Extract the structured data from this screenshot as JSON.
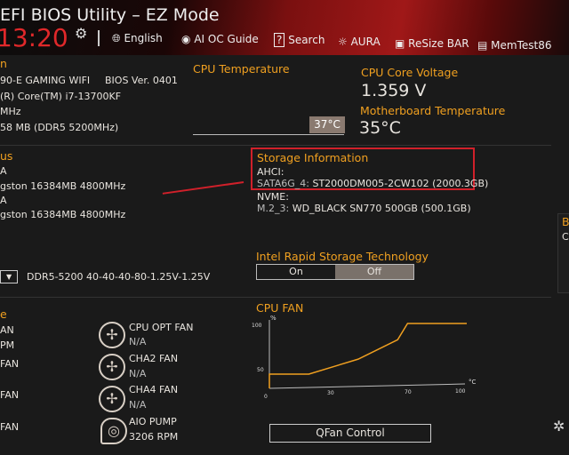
{
  "header": {
    "title": "EFI BIOS Utility – EZ Mode",
    "time": "13:20",
    "nav": [
      {
        "label": "English",
        "icon": "globe-icon"
      },
      {
        "label": "AI OC Guide",
        "icon": "ai-icon"
      },
      {
        "label": "Search",
        "icon": "question-icon"
      },
      {
        "label": "AURA",
        "icon": "aura-icon"
      },
      {
        "label": "ReSize BAR",
        "icon": "resize-bar-icon"
      },
      {
        "label": "MemTest86",
        "icon": "memtest-icon"
      }
    ]
  },
  "info": {
    "heading": "n",
    "board": "90-E GAMING WIFI",
    "bios": "BIOS Ver. 0401",
    "cpu": "(R) Core(TM) i7-13700KF",
    "speed": "MHz",
    "memory": "58 MB (DDR5 5200MHz)"
  },
  "cpu_temp": {
    "label": "CPU Temperature",
    "value": "37°C"
  },
  "voltage": {
    "label": "CPU Core Voltage",
    "value": "1.359 V"
  },
  "mb_temp": {
    "label": "Motherboard Temperature",
    "value": "35°C"
  },
  "dram": {
    "heading": "us",
    "rows": [
      "A",
      "gston 16384MB 4800MHz",
      "A",
      "gston 16384MB 4800MHz"
    ]
  },
  "storage": {
    "label": "Storage Information",
    "ahci_label": "AHCI:",
    "ahci_port": "SATA6G_4:",
    "ahci_device": "ST2000DM005-2CW102 (2000.3GB)",
    "nvme_label": "NVME:",
    "nvme_port": "M.2_3:",
    "nvme_device": "WD_BLACK SN770 500GB (500.1GB)"
  },
  "xmp": {
    "value": "DDR5-5200 40-40-40-80-1.25V-1.25V"
  },
  "rst": {
    "label": "Intel Rapid Storage Technology",
    "on": "On",
    "off": "Off",
    "selected": "Off"
  },
  "fan_profile": {
    "heading": "e",
    "left": [
      "AN",
      "PM",
      "FAN",
      "FAN",
      "FAN"
    ],
    "fans": [
      {
        "name": "CPU OPT FAN",
        "value": "N/A"
      },
      {
        "name": "CHA2 FAN",
        "value": "N/A"
      },
      {
        "name": "CHA4 FAN",
        "value": "N/A"
      },
      {
        "name": "AIO PUMP",
        "value": "3206 RPM"
      }
    ]
  },
  "cpu_fan": {
    "label": "CPU FAN",
    "y_unit": "%",
    "x_unit": "°C",
    "y_ticks": [
      "100",
      "50",
      "0"
    ],
    "x_ticks": [
      "30",
      "70",
      "100"
    ],
    "button": "QFan Control",
    "color": "#f0a020",
    "curve": [
      [
        0,
        0
      ],
      [
        0,
        22
      ],
      [
        20,
        22
      ],
      [
        45,
        45
      ],
      [
        65,
        75
      ],
      [
        70,
        100
      ],
      [
        100,
        100
      ]
    ]
  },
  "right_edge": {
    "heading": "B",
    "text": "Cl"
  }
}
